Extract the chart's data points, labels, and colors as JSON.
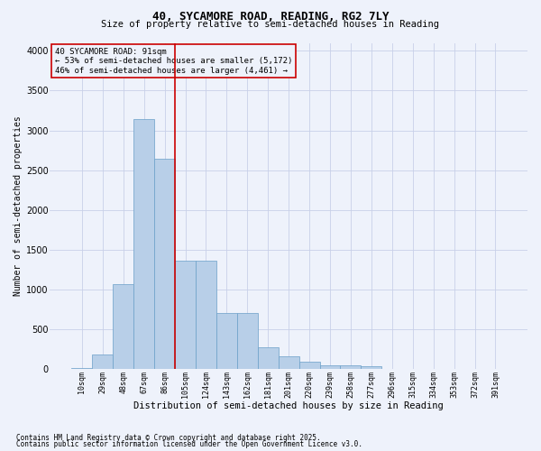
{
  "title_line1": "40, SYCAMORE ROAD, READING, RG2 7LY",
  "title_line2": "Size of property relative to semi-detached houses in Reading",
  "xlabel": "Distribution of semi-detached houses by size in Reading",
  "ylabel": "Number of semi-detached properties",
  "annotation_title": "40 SYCAMORE ROAD: 91sqm",
  "annotation_line2": "← 53% of semi-detached houses are smaller (5,172)",
  "annotation_line3": "46% of semi-detached houses are larger (4,461) →",
  "footer_line1": "Contains HM Land Registry data © Crown copyright and database right 2025.",
  "footer_line2": "Contains public sector information licensed under the Open Government Licence v3.0.",
  "bar_color": "#b8cfe8",
  "bar_edge_color": "#6a9fc8",
  "vline_color": "#cc0000",
  "annotation_box_color": "#cc0000",
  "background_color": "#eef2fb",
  "categories": [
    "10sqm",
    "29sqm",
    "48sqm",
    "67sqm",
    "86sqm",
    "105sqm",
    "124sqm",
    "143sqm",
    "162sqm",
    "181sqm",
    "201sqm",
    "220sqm",
    "239sqm",
    "258sqm",
    "277sqm",
    "296sqm",
    "315sqm",
    "334sqm",
    "353sqm",
    "372sqm",
    "391sqm"
  ],
  "values": [
    20,
    185,
    1075,
    3140,
    2640,
    1370,
    1370,
    710,
    710,
    280,
    165,
    95,
    55,
    45,
    35,
    5,
    2,
    1,
    0,
    0,
    0
  ],
  "ylim": [
    0,
    4100
  ],
  "yticks": [
    0,
    500,
    1000,
    1500,
    2000,
    2500,
    3000,
    3500,
    4000
  ],
  "vline_x_index": 4.5,
  "grid_color": "#c8d0e8",
  "title_fontsize": 9,
  "subtitle_fontsize": 7.5,
  "ylabel_fontsize": 7,
  "xlabel_fontsize": 7.5,
  "ytick_fontsize": 7,
  "xtick_fontsize": 6,
  "annotation_fontsize": 6.5,
  "footer_fontsize": 5.5
}
